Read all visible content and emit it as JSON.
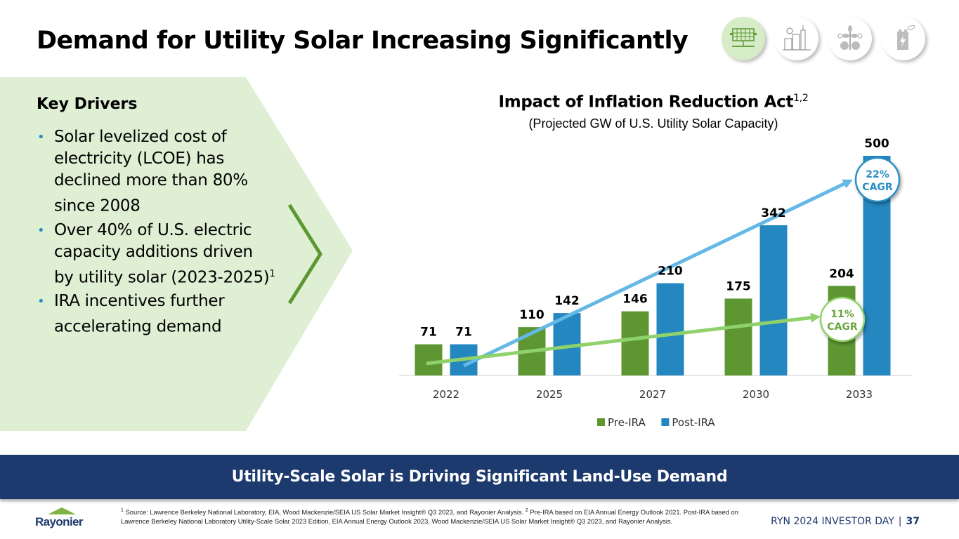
{
  "header": {
    "title": "Demand for Utility Solar Increasing Significantly",
    "nav_icons": [
      {
        "name": "solar-panel-icon",
        "active": true
      },
      {
        "name": "industry-icon",
        "active": false
      },
      {
        "name": "plant-growth-icon",
        "active": false
      },
      {
        "name": "battery-leaf-icon",
        "active": false
      }
    ]
  },
  "key_drivers": {
    "title": "Key Drivers",
    "bullets": [
      {
        "text": "Solar levelized cost of electricity (LCOE) has declined more than 80% since 2008",
        "sup": ""
      },
      {
        "text": "Over 40% of U.S. electric capacity additions driven by utility solar (2023-2025)",
        "sup": "1"
      },
      {
        "text": "IRA incentives further accelerating demand",
        "sup": ""
      }
    ]
  },
  "colors": {
    "pre_ira": "#5e9732",
    "post_ira": "#2487c0",
    "pre_trend": "#8fd16a",
    "post_trend": "#63b8e6",
    "banner": "#1d3a6e",
    "panel": "#deefd4",
    "chevron": "#5e9732"
  },
  "chart_data": {
    "type": "bar",
    "title": "Impact of Inflation Reduction Act",
    "title_sup": "1,2",
    "subtitle": "(Projected GW of U.S. Utility Solar Capacity)",
    "xlabel": "",
    "ylabel": "",
    "ylim": [
      0,
      500
    ],
    "grid": false,
    "legend_position": "bottom-center",
    "categories": [
      "2022",
      "2025",
      "2027",
      "2030",
      "2033"
    ],
    "series": [
      {
        "name": "Pre-IRA",
        "values": [
          71,
          110,
          146,
          175,
          204
        ]
      },
      {
        "name": "Post-IRA",
        "values": [
          71,
          142,
          210,
          342,
          500
        ]
      }
    ],
    "annotations": [
      {
        "series": "Post-IRA",
        "label_line1": "22%",
        "label_line2": "CAGR",
        "type": "trend-arrow"
      },
      {
        "series": "Pre-IRA",
        "label_line1": "11%",
        "label_line2": "CAGR",
        "type": "trend-arrow"
      }
    ]
  },
  "banner": {
    "text": "Utility-Scale Solar is Driving Significant Land-Use Demand"
  },
  "footer": {
    "logo": "Rayonier",
    "footnote_1_sup": "1",
    "footnote_1": "Source: Lawrence Berkeley National Laboratory, EIA, Wood Mackenzie/SEIA US Solar Market Insight® Q3 2023, and Rayonier Analysis.",
    "footnote_2_sup": "2",
    "footnote_2": "Pre-IRA based on EIA Annual Energy Outlook 2021. Post-IRA based on Lawrence Berkeley National Laboratory Utility-Scale Solar 2023 Edition, EIA Annual Energy Outlook 2023, Wood Mackenzie/SEIA US Solar Market Insight® Q3 2023, and Rayonier Analysis.",
    "event": "RYN 2024 INVESTOR DAY",
    "separator": "|",
    "page_number": "37"
  }
}
